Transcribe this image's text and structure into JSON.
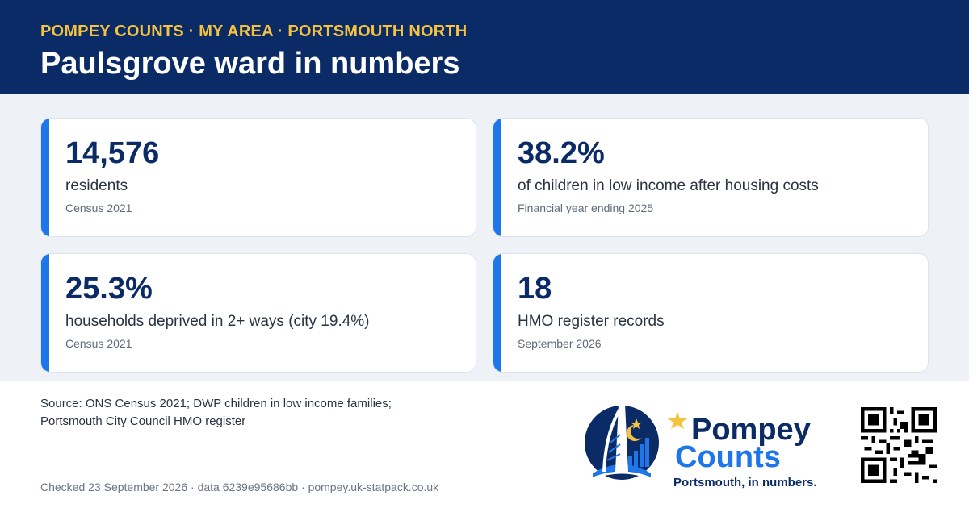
{
  "header": {
    "kicker": "POMPEY COUNTS · MY AREA · PORTSMOUTH NORTH",
    "title": "Paulsgrove ward in numbers"
  },
  "stats": [
    {
      "value": "14,576",
      "label": "residents",
      "source": "Census 2021"
    },
    {
      "value": "38.2%",
      "label": "of children in low income after housing costs",
      "source": "Financial year ending 2025"
    },
    {
      "value": "25.3%",
      "label": "households deprived in 2+ ways (city 19.4%)",
      "source": "Census 2021"
    },
    {
      "value": "18",
      "label": "HMO register records",
      "source": "September 2026"
    }
  ],
  "footer": {
    "source_line1": "Source: ONS Census 2021; DWP children in low income families;",
    "source_line2": "Portsmouth City Council HMO register",
    "checked": "Checked 23 September 2026 · data 6239e95686bb · pompey.uk-statpack.co.uk"
  },
  "logo": {
    "line1": "Pompey",
    "line2": "Counts",
    "tagline": "Portsmouth, in numbers."
  },
  "colors": {
    "navy": "#0b2b66",
    "accent_blue": "#1e77e8",
    "gold": "#f5c340"
  }
}
